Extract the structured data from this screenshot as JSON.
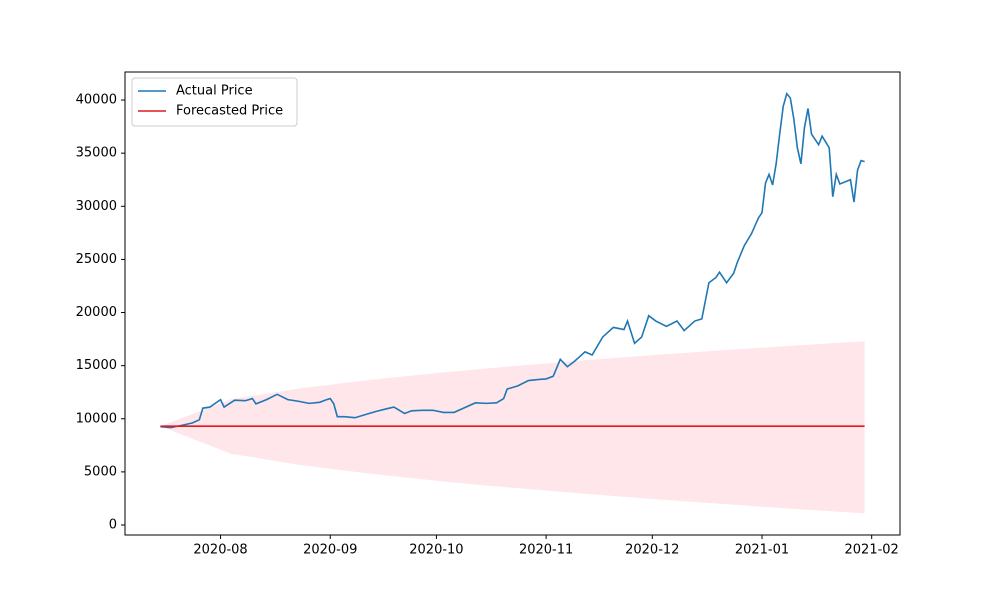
{
  "chart_data": {
    "type": "line",
    "xlim": [
      18448,
      18667
    ],
    "xticks": [
      {
        "value": 18475,
        "label": "2020-08"
      },
      {
        "value": 18506,
        "label": "2020-09"
      },
      {
        "value": 18536,
        "label": "2020-10"
      },
      {
        "value": 18567,
        "label": "2020-11"
      },
      {
        "value": 18597,
        "label": "2020-12"
      },
      {
        "value": 18628,
        "label": "2021-01"
      },
      {
        "value": 18659,
        "label": "2021-02"
      }
    ],
    "ylim": [
      -940,
      42640
    ],
    "yticks": [
      0,
      5000,
      10000,
      15000,
      20000,
      25000,
      30000,
      35000,
      40000
    ],
    "legend": "upper left",
    "band": {
      "color": "#ffc0cb",
      "opacity": 0.4,
      "x": [
        18458,
        18478,
        18498,
        18518,
        18538,
        18558,
        18578,
        18598,
        18618,
        18638,
        18657
      ],
      "upper": [
        9300,
        11840,
        12890,
        13690,
        14370,
        14970,
        15510,
        16010,
        16470,
        16910,
        17300
      ],
      "lower": [
        9300,
        6700,
        5630,
        4800,
        4100,
        3490,
        2940,
        2420,
        1950,
        1500,
        1100
      ]
    },
    "series": [
      {
        "name": "Actual Price",
        "color": "#1f77b4",
        "x": [
          18458,
          18461,
          18464,
          18467,
          18469,
          18470,
          18472,
          18475,
          18476,
          18479,
          18482,
          18484,
          18485,
          18488,
          18491,
          18494,
          18497,
          18500,
          18503,
          18505,
          18506,
          18507,
          18508,
          18510,
          18513,
          18516,
          18519,
          18522,
          18524,
          18527,
          18529,
          18532,
          18535,
          18538,
          18541,
          18544,
          18547,
          18550,
          18553,
          18555,
          18556,
          18559,
          18562,
          18565,
          18567,
          18569,
          18571,
          18573,
          18575,
          18578,
          18580,
          18583,
          18586,
          18589,
          18590,
          18592,
          18594,
          18596,
          18598,
          18601,
          18604,
          18606,
          18609,
          18611,
          18613,
          18615,
          18616,
          18618,
          18620,
          18621,
          18623,
          18625,
          18627,
          18628,
          18629,
          18630,
          18631,
          18632,
          18633,
          18634,
          18635,
          18636,
          18637,
          18638,
          18639,
          18640,
          18641,
          18642,
          18644,
          18645,
          18647,
          18648,
          18649,
          18650,
          18653,
          18654,
          18655,
          18656,
          18657
        ],
        "values": [
          9250,
          9170,
          9380,
          9600,
          9900,
          11000,
          11100,
          11800,
          11100,
          11750,
          11700,
          11900,
          11400,
          11800,
          12300,
          11800,
          11650,
          11450,
          11550,
          11800,
          11900,
          11400,
          10200,
          10200,
          10100,
          10400,
          10700,
          10950,
          11100,
          10500,
          10750,
          10800,
          10800,
          10600,
          10600,
          11050,
          11500,
          11450,
          11500,
          11900,
          12800,
          13100,
          13600,
          13700,
          13750,
          14000,
          15600,
          14900,
          15400,
          16300,
          16000,
          17700,
          18600,
          18400,
          19200,
          17100,
          17700,
          19700,
          19200,
          18700,
          19200,
          18300,
          19200,
          19400,
          22800,
          23300,
          23800,
          22800,
          23700,
          24700,
          26300,
          27400,
          28900,
          29400,
          32200,
          33000,
          32000,
          34000,
          36800,
          39400,
          40600,
          40200,
          38200,
          35500,
          34000,
          37400,
          39200,
          36800,
          35800,
          36600,
          35500,
          30900,
          33000,
          32100,
          32500,
          30400,
          33400,
          34300,
          34200
        ]
      },
      {
        "name": "Forecasted Price",
        "color": "#e31a1c",
        "x": [
          18458,
          18657
        ],
        "values": [
          9300,
          9300
        ]
      }
    ]
  }
}
